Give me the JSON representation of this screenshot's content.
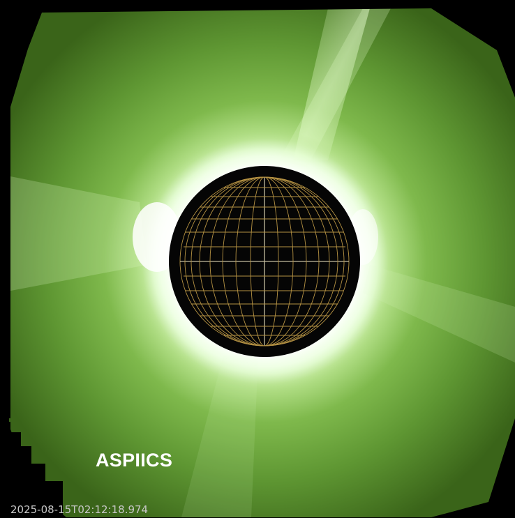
{
  "image": {
    "instrument_label": "ASPIICS",
    "timestamp": "2025-08-15T02:12:18.974",
    "colors": {
      "background": "#000000",
      "corona_inner": "#f4fff0",
      "corona_mid": "#8fc45a",
      "corona_outer": "#3f6a1e",
      "occulter": "#050505",
      "grid_line": "#c9a24a",
      "timestamp_text": "#c8c8c8",
      "label_text": "#ffffff"
    }
  }
}
